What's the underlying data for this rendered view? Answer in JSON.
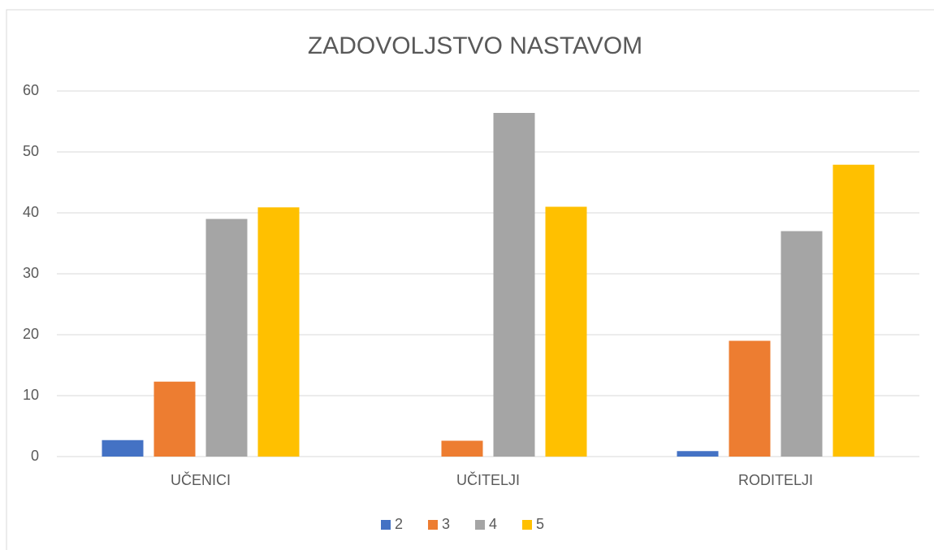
{
  "chart_data": {
    "type": "bar",
    "title": "ZADOVOLJSTVO NASTAVOM",
    "categories": [
      "UČENICI",
      "UČITELJI",
      "RODITELJI"
    ],
    "series": [
      {
        "name": "2",
        "color": "#4472c4",
        "values": [
          2.7,
          0,
          0.9
        ]
      },
      {
        "name": "3",
        "color": "#ed7d31",
        "values": [
          12.3,
          2.6,
          19
        ]
      },
      {
        "name": "4",
        "color": "#a5a5a5",
        "values": [
          39,
          56.4,
          37
        ]
      },
      {
        "name": "5",
        "color": "#ffc000",
        "values": [
          40.9,
          41,
          47.9
        ]
      }
    ],
    "ylim": [
      0,
      60
    ],
    "yticks": [
      0,
      10,
      20,
      30,
      40,
      50,
      60
    ],
    "grid": true,
    "legend": "bottom"
  }
}
